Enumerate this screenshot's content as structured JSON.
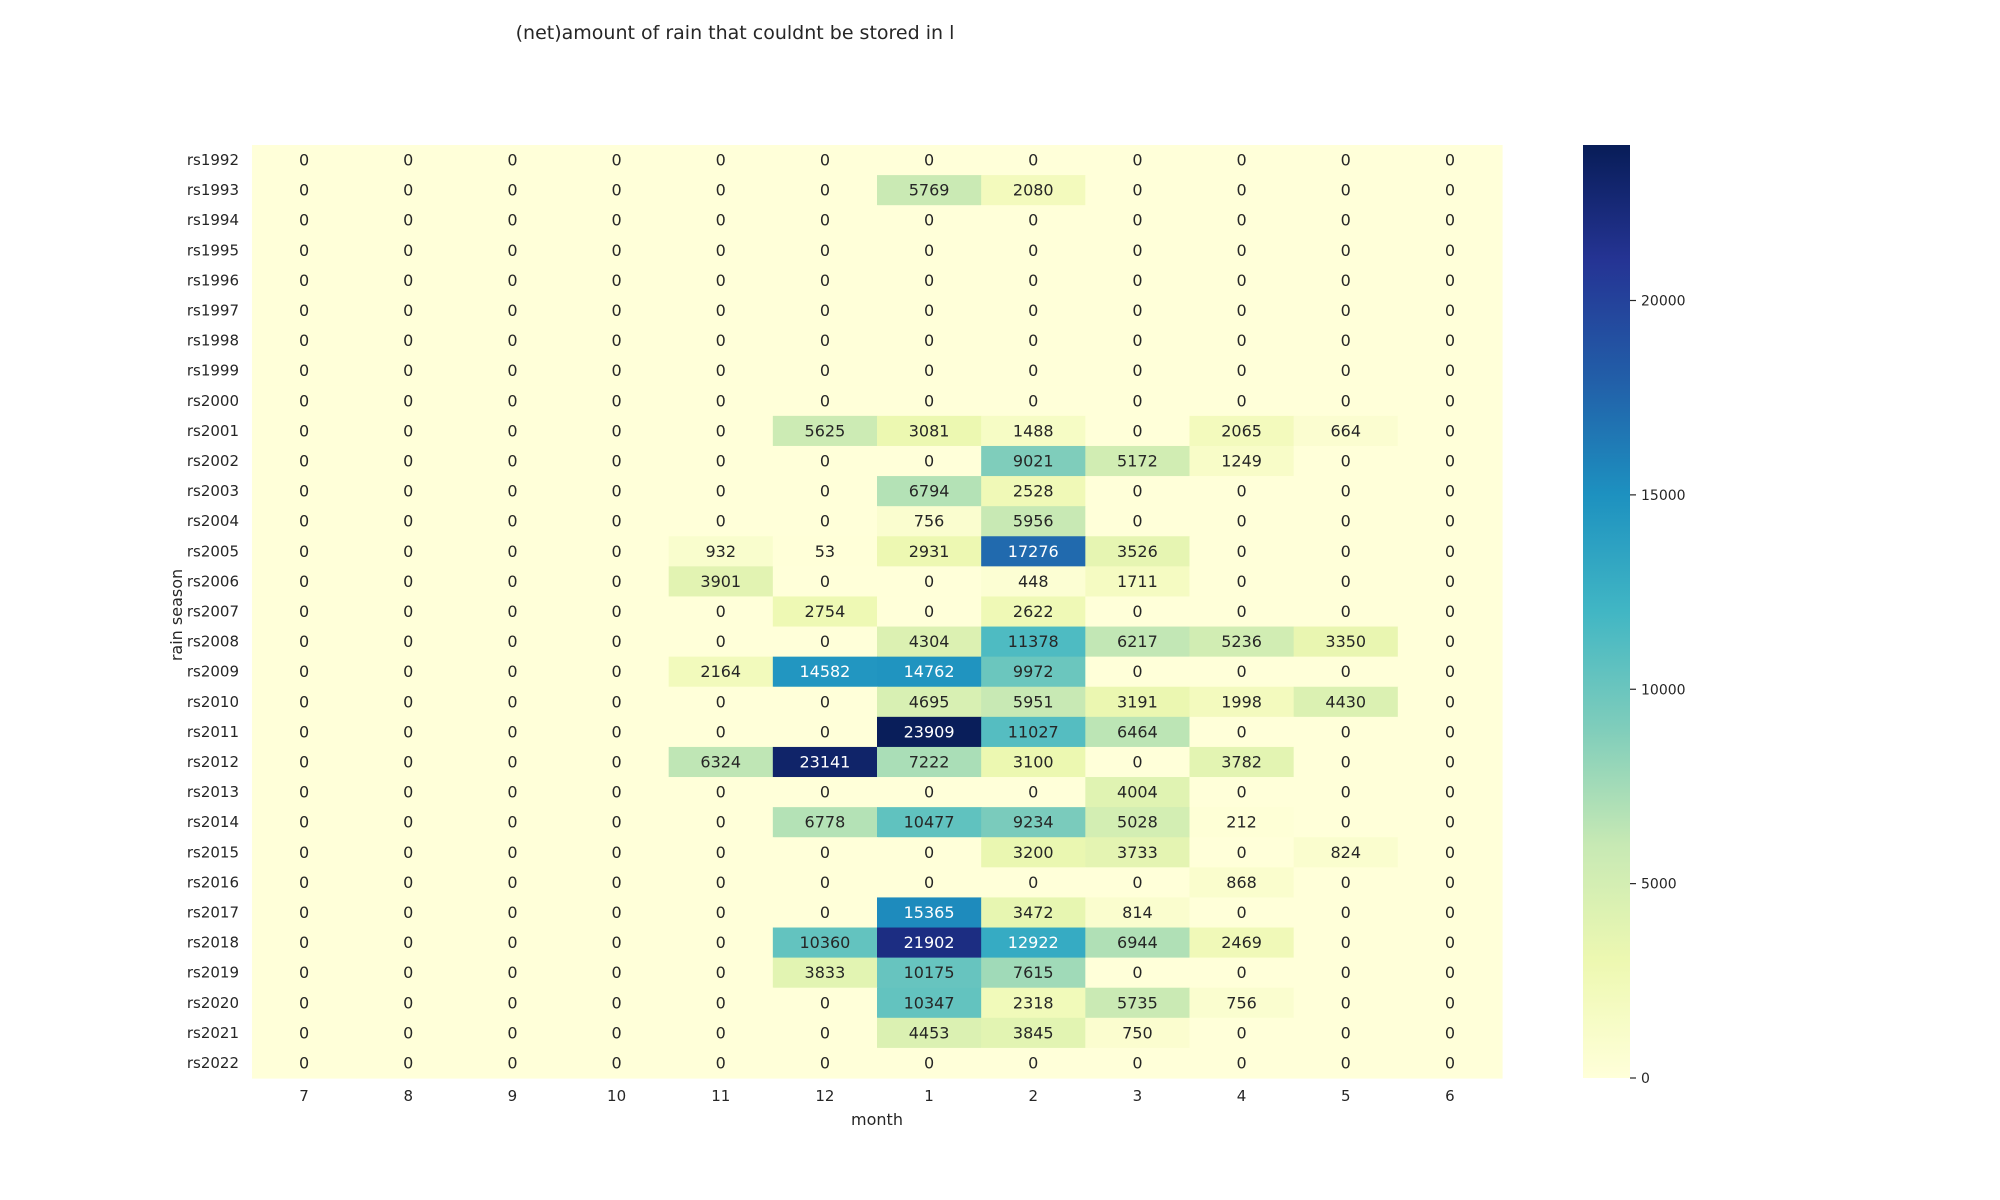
{
  "chart_data": {
    "type": "heatmap",
    "title": "(net)amount of rain that couldnt be stored in l",
    "xlabel": "month",
    "ylabel": "rain season",
    "colormap": "YlGnBu",
    "colorbar": {
      "min": 0,
      "max": 24000,
      "ticks": [
        "0",
        "5000",
        "10000",
        "15000",
        "20000"
      ]
    },
    "x_categories": [
      "7",
      "8",
      "9",
      "10",
      "11",
      "12",
      "1",
      "2",
      "3",
      "4",
      "5",
      "6"
    ],
    "y_categories": [
      "rs1992",
      "rs1993",
      "rs1994",
      "rs1995",
      "rs1996",
      "rs1997",
      "rs1998",
      "rs1999",
      "rs2000",
      "rs2001",
      "rs2002",
      "rs2003",
      "rs2004",
      "rs2005",
      "rs2006",
      "rs2007",
      "rs2008",
      "rs2009",
      "rs2010",
      "rs2011",
      "rs2012",
      "rs2013",
      "rs2014",
      "rs2015",
      "rs2016",
      "rs2017",
      "rs2018",
      "rs2019",
      "rs2020",
      "rs2021",
      "rs2022"
    ],
    "values": [
      [
        0,
        0,
        0,
        0,
        0,
        0,
        0,
        0,
        0,
        0,
        0,
        0
      ],
      [
        0,
        0,
        0,
        0,
        0,
        0,
        5769,
        2080,
        0,
        0,
        0,
        0
      ],
      [
        0,
        0,
        0,
        0,
        0,
        0,
        0,
        0,
        0,
        0,
        0,
        0
      ],
      [
        0,
        0,
        0,
        0,
        0,
        0,
        0,
        0,
        0,
        0,
        0,
        0
      ],
      [
        0,
        0,
        0,
        0,
        0,
        0,
        0,
        0,
        0,
        0,
        0,
        0
      ],
      [
        0,
        0,
        0,
        0,
        0,
        0,
        0,
        0,
        0,
        0,
        0,
        0
      ],
      [
        0,
        0,
        0,
        0,
        0,
        0,
        0,
        0,
        0,
        0,
        0,
        0
      ],
      [
        0,
        0,
        0,
        0,
        0,
        0,
        0,
        0,
        0,
        0,
        0,
        0
      ],
      [
        0,
        0,
        0,
        0,
        0,
        0,
        0,
        0,
        0,
        0,
        0,
        0
      ],
      [
        0,
        0,
        0,
        0,
        0,
        5625,
        3081,
        1488,
        0,
        2065,
        664,
        0
      ],
      [
        0,
        0,
        0,
        0,
        0,
        0,
        0,
        9021,
        5172,
        1249,
        0,
        0
      ],
      [
        0,
        0,
        0,
        0,
        0,
        0,
        6794,
        2528,
        0,
        0,
        0,
        0
      ],
      [
        0,
        0,
        0,
        0,
        0,
        0,
        756,
        5956,
        0,
        0,
        0,
        0
      ],
      [
        0,
        0,
        0,
        0,
        932,
        53,
        2931,
        17276,
        3526,
        0,
        0,
        0
      ],
      [
        0,
        0,
        0,
        0,
        3901,
        0,
        0,
        448,
        1711,
        0,
        0,
        0
      ],
      [
        0,
        0,
        0,
        0,
        0,
        2754,
        0,
        2622,
        0,
        0,
        0,
        0
      ],
      [
        0,
        0,
        0,
        0,
        0,
        0,
        4304,
        11378,
        6217,
        5236,
        3350,
        0
      ],
      [
        0,
        0,
        0,
        0,
        2164,
        14582,
        14762,
        9972,
        0,
        0,
        0,
        0
      ],
      [
        0,
        0,
        0,
        0,
        0,
        0,
        4695,
        5951,
        3191,
        1998,
        4430,
        0
      ],
      [
        0,
        0,
        0,
        0,
        0,
        0,
        23909,
        11027,
        6464,
        0,
        0,
        0
      ],
      [
        0,
        0,
        0,
        0,
        6324,
        23141,
        7222,
        3100,
        0,
        3782,
        0,
        0
      ],
      [
        0,
        0,
        0,
        0,
        0,
        0,
        0,
        0,
        4004,
        0,
        0,
        0
      ],
      [
        0,
        0,
        0,
        0,
        0,
        6778,
        10477,
        9234,
        5028,
        212,
        0,
        0
      ],
      [
        0,
        0,
        0,
        0,
        0,
        0,
        0,
        3200,
        3733,
        0,
        824,
        0
      ],
      [
        0,
        0,
        0,
        0,
        0,
        0,
        0,
        0,
        0,
        868,
        0,
        0
      ],
      [
        0,
        0,
        0,
        0,
        0,
        0,
        15365,
        3472,
        814,
        0,
        0,
        0
      ],
      [
        0,
        0,
        0,
        0,
        0,
        10360,
        21902,
        12922,
        6944,
        2469,
        0,
        0
      ],
      [
        0,
        0,
        0,
        0,
        0,
        3833,
        10175,
        7615,
        0,
        0,
        0,
        0
      ],
      [
        0,
        0,
        0,
        0,
        0,
        0,
        10347,
        2318,
        5735,
        756,
        0,
        0
      ],
      [
        0,
        0,
        0,
        0,
        0,
        0,
        4453,
        3845,
        750,
        0,
        0,
        0
      ],
      [
        0,
        0,
        0,
        0,
        0,
        0,
        0,
        0,
        0,
        0,
        0,
        0
      ]
    ]
  }
}
